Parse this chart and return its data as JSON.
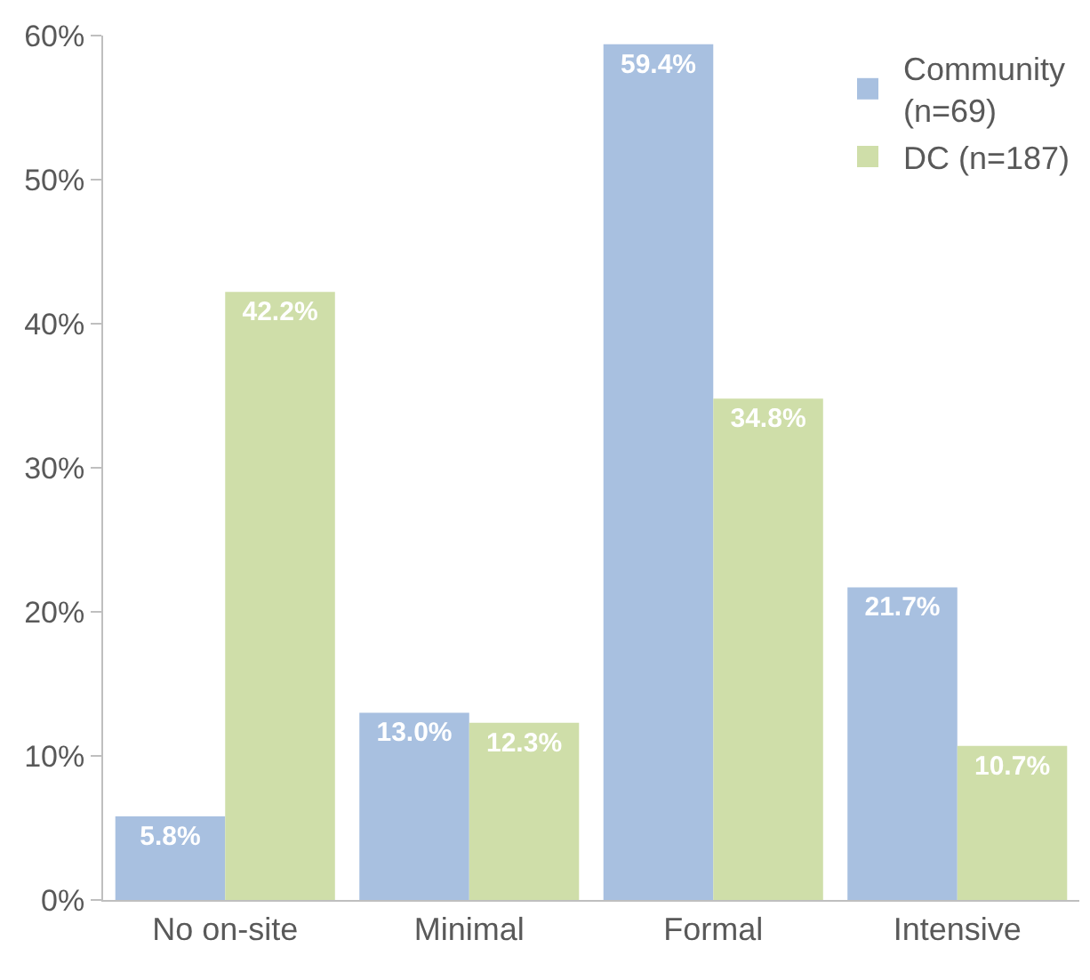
{
  "chart_data": {
    "type": "bar",
    "categories": [
      "No on-site",
      "Minimal",
      "Formal",
      "Intensive"
    ],
    "series": [
      {
        "name": "Community (n=69)",
        "color": "#a8c0e0",
        "values": [
          5.8,
          13.0,
          59.4,
          21.7
        ],
        "value_labels": [
          "5.8%",
          "13.0%",
          "59.4%",
          "21.7%"
        ]
      },
      {
        "name": "DC (n=187)",
        "color": "#cfdea9",
        "values": [
          42.2,
          12.3,
          34.8,
          10.7
        ],
        "value_labels": [
          "42.2%",
          "12.3%",
          "34.8%",
          "10.7%"
        ]
      }
    ],
    "ylim": [
      0,
      60
    ],
    "yticks": [
      {
        "value": 0,
        "label": "0%"
      },
      {
        "value": 10,
        "label": "10%"
      },
      {
        "value": 20,
        "label": "20%"
      },
      {
        "value": 30,
        "label": "30%"
      },
      {
        "value": 40,
        "label": "40%"
      },
      {
        "value": 50,
        "label": "50%"
      },
      {
        "value": 60,
        "label": "60%"
      }
    ],
    "legend": "top right"
  }
}
